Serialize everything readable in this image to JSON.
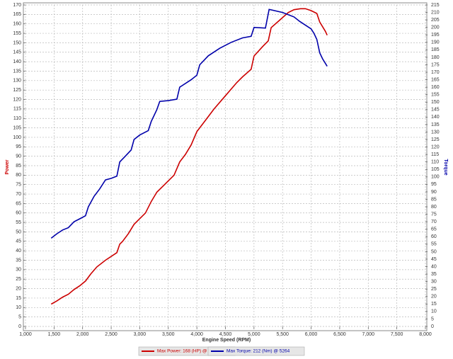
{
  "chart_data": {
    "type": "line",
    "x_label": "Engine Speed (RPM)",
    "y_label": "Power",
    "y2_label": "Torque",
    "xlim": [
      1000,
      8000
    ],
    "xticks": [
      {
        "value": 1000,
        "label": "1,000"
      },
      {
        "value": 1500,
        "label": "1,500"
      },
      {
        "value": 2000,
        "label": "2,000"
      },
      {
        "value": 2500,
        "label": "2,500"
      },
      {
        "value": 3000,
        "label": "3,000"
      },
      {
        "value": 3500,
        "label": "3,500"
      },
      {
        "value": 4000,
        "label": "4,000"
      },
      {
        "value": 4500,
        "label": "4,500"
      },
      {
        "value": 5000,
        "label": "5,000"
      },
      {
        "value": 5500,
        "label": "5,500"
      },
      {
        "value": 6000,
        "label": "6,000"
      },
      {
        "value": 6500,
        "label": "6,500"
      },
      {
        "value": 7000,
        "label": "7,000"
      },
      {
        "value": 7500,
        "label": "7,500"
      },
      {
        "value": 8000,
        "label": "8,000"
      }
    ],
    "ylim": [
      0,
      170
    ],
    "yticks": [
      0,
      5,
      10,
      15,
      20,
      25,
      30,
      35,
      40,
      45,
      50,
      55,
      60,
      65,
      70,
      75,
      80,
      85,
      90,
      95,
      100,
      105,
      110,
      115,
      120,
      125,
      130,
      135,
      140,
      145,
      150,
      155,
      160,
      165,
      170
    ],
    "y2lim": [
      0,
      215
    ],
    "y2ticks": [
      0,
      5,
      10,
      15,
      20,
      25,
      30,
      35,
      40,
      45,
      50,
      55,
      60,
      65,
      70,
      75,
      80,
      85,
      90,
      95,
      100,
      105,
      110,
      115,
      120,
      125,
      130,
      135,
      140,
      145,
      150,
      155,
      160,
      165,
      170,
      175,
      180,
      185,
      190,
      195,
      200,
      205,
      210,
      215
    ],
    "grid": true,
    "series": [
      {
        "name": "Max Power: 168 (HP) @ 5813",
        "color": "#cc0000",
        "axis": "y",
        "x": [
          1450,
          1550,
          1650,
          1750,
          1850,
          1950,
          2050,
          2150,
          2250,
          2400,
          2600,
          2650,
          2700,
          2800,
          2900,
          3000,
          3100,
          3200,
          3300,
          3400,
          3600,
          3700,
          3800,
          3900,
          4000,
          4150,
          4300,
          4500,
          4700,
          4800,
          4950,
          5000,
          5150,
          5250,
          5300,
          5450,
          5600,
          5700,
          5813,
          5900,
          6000,
          6100,
          6150,
          6250,
          6280
        ],
        "values": [
          11.8,
          13.5,
          15.5,
          17,
          19.5,
          21.5,
          24,
          28,
          31.5,
          35,
          39,
          43.5,
          45,
          49,
          54,
          57,
          60,
          66,
          71,
          74,
          80,
          87,
          91,
          96,
          103,
          109,
          115,
          122,
          129,
          132,
          136,
          143,
          148,
          151,
          158,
          162,
          166,
          167.5,
          168,
          168,
          167,
          165.5,
          161,
          156,
          154
        ]
      },
      {
        "name": "Max Torque: 212 (Nm) @ 5264",
        "color": "#0000aa",
        "axis": "y2",
        "x": [
          1450,
          1550,
          1650,
          1750,
          1850,
          1950,
          2050,
          2100,
          2200,
          2300,
          2400,
          2500,
          2600,
          2650,
          2750,
          2850,
          2900,
          3000,
          3150,
          3200,
          3300,
          3350,
          3500,
          3650,
          3700,
          3900,
          4000,
          4050,
          4200,
          4400,
          4600,
          4800,
          4950,
          5000,
          5200,
          5264,
          5500,
          5700,
          5800,
          6000,
          6050,
          6100,
          6150,
          6200,
          6280
        ],
        "values": [
          59,
          62,
          64.5,
          66,
          70,
          72,
          74,
          80,
          87,
          92,
          98,
          99,
          100.5,
          110,
          114,
          118,
          125,
          128,
          131,
          137,
          145,
          150.5,
          151,
          152,
          160,
          165,
          168,
          175,
          181,
          186,
          190,
          193,
          194,
          200,
          199.5,
          212,
          210,
          207,
          204,
          199,
          196,
          192,
          183,
          179,
          174
        ]
      }
    ]
  }
}
